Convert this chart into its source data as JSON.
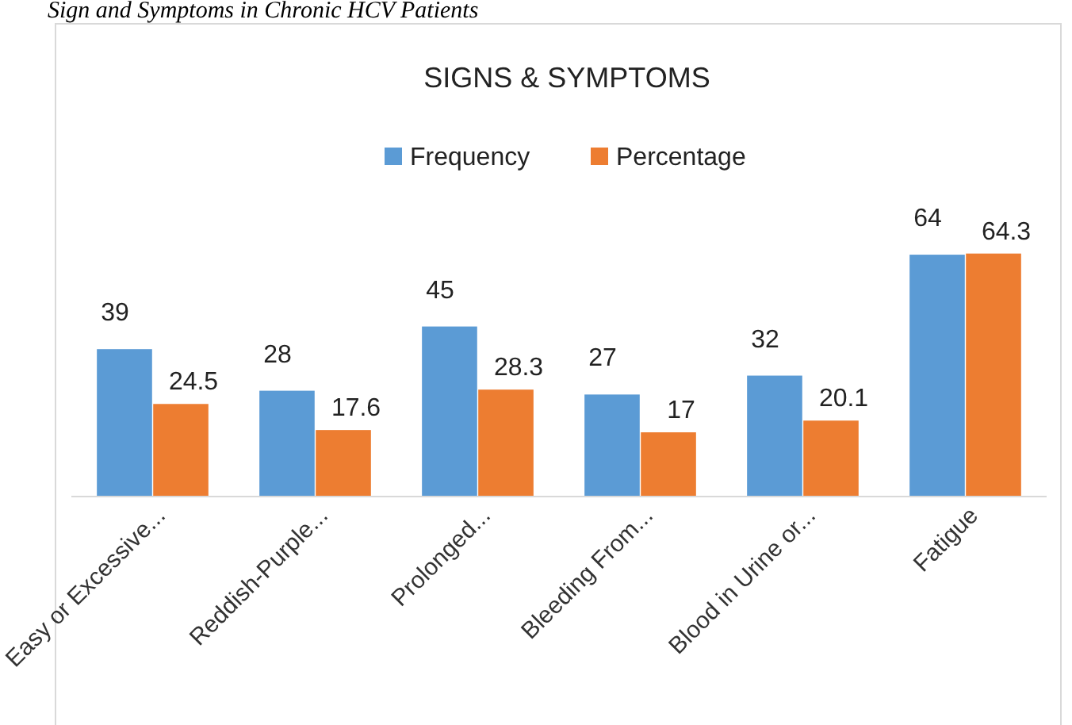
{
  "chart_data": {
    "type": "bar",
    "title": "SIGNS & SYMPTOMS",
    "annotations": [
      "Sign and Symptoms in Chronic HCV Patients"
    ],
    "categories": [
      "Easy or Excessive...",
      "Reddish-Purple...",
      "Prolonged...",
      "Bleeding From...",
      "Blood in Urine or...",
      "Fatigue"
    ],
    "series": [
      {
        "name": "Frequency",
        "color": "#5b9bd5",
        "values": [
          39,
          28,
          45,
          27,
          32,
          64
        ]
      },
      {
        "name": "Percentage",
        "color": "#ed7d31",
        "values": [
          24.5,
          17.6,
          28.3,
          17,
          20.1,
          64.3
        ]
      }
    ],
    "data_labels": true,
    "legend": "top",
    "grid": false
  }
}
